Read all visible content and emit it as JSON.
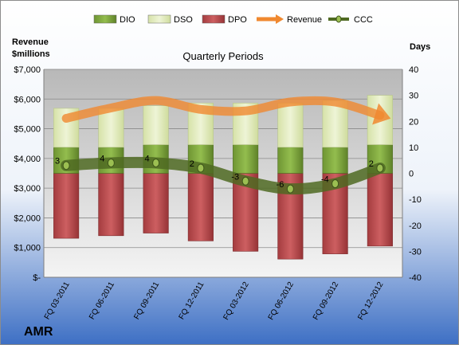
{
  "chart_data": {
    "type": "bar",
    "title": "Quarterly Periods",
    "company": "AMR",
    "left_axis_label": [
      "Revenue",
      "$millions"
    ],
    "right_axis_label": "Days",
    "categories": [
      "FQ 03-2011",
      "FQ 06-2011",
      "FQ 09-2011",
      "FQ 12-2011",
      "FQ 03-2012",
      "FQ 06-2012",
      "FQ 09-2012",
      "FQ 12-2012"
    ],
    "left_axis": {
      "min": 0,
      "max": 7000,
      "step": 1000,
      "tick_labels": [
        "$-",
        "$1,000",
        "$2,000",
        "$3,000",
        "$4,000",
        "$5,000",
        "$6,000",
        "$7,000"
      ]
    },
    "right_axis": {
      "min": -40,
      "max": 40,
      "step": 10,
      "tick_labels": [
        "-40",
        "-30",
        "-20",
        "-10",
        "0",
        "10",
        "20",
        "30",
        "40"
      ]
    },
    "legend_position": "top",
    "grid": true,
    "series": [
      {
        "name": "DIO",
        "kind": "bar-stack",
        "color": "#7aa03a",
        "values": [
          10,
          10,
          11,
          11,
          11,
          10,
          10,
          11
        ]
      },
      {
        "name": "DSO",
        "kind": "bar-stack",
        "color": "#dfe9bc",
        "values": [
          15,
          15,
          15,
          16,
          16,
          17,
          18,
          19
        ]
      },
      {
        "name": "DPO",
        "kind": "bar-negative",
        "color": "#b8474a",
        "values": [
          -25,
          -24,
          -23,
          -26,
          -30,
          -33,
          -31,
          -28
        ]
      },
      {
        "name": "Revenue",
        "kind": "line-arrow",
        "color": "#f0882f",
        "values": [
          5350,
          5700,
          5950,
          5650,
          5600,
          5900,
          5900,
          5450
        ]
      },
      {
        "name": "CCC",
        "kind": "line-marker",
        "color": "#4f6a22",
        "values": [
          3,
          4,
          4,
          2,
          -3,
          -6,
          -4,
          2
        ]
      }
    ],
    "data_labels": [
      "3",
      "4",
      "4",
      "2",
      "-3",
      "-6",
      "-4",
      "2"
    ]
  }
}
